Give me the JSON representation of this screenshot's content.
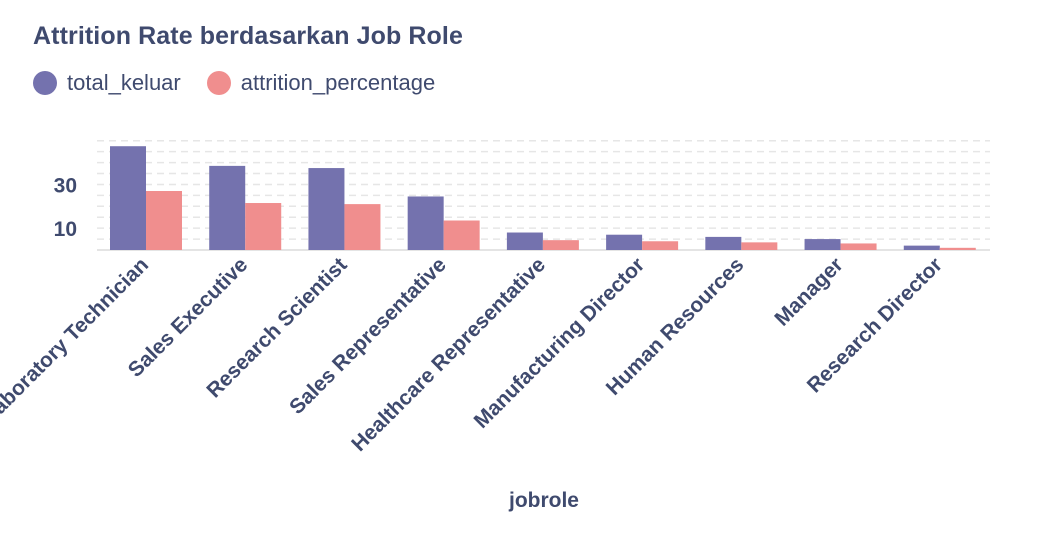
{
  "chart_data": {
    "type": "bar",
    "title": "Attrition Rate berdasarkan Job Role",
    "xlabel": "jobrole",
    "ylabel": "",
    "categories": [
      "Laboratory Technician",
      "Sales Executive",
      "Research Scientist",
      "Sales Representative",
      "Healthcare Representative",
      "Manufacturing Director",
      "Human Resources",
      "Manager",
      "Research Director"
    ],
    "series": [
      {
        "name": "total_keluar",
        "color": "#7472ae",
        "values": [
          47.5,
          38.5,
          37.5,
          24.5,
          8,
          7,
          6,
          5,
          2
        ]
      },
      {
        "name": "attrition_percentage",
        "color": "#f08e8e",
        "values": [
          27,
          21.5,
          21,
          13.5,
          4.5,
          4,
          3.5,
          3,
          1
        ]
      }
    ],
    "y_ticks": [
      10,
      30
    ],
    "ylim": [
      0,
      49
    ],
    "grid": true,
    "legend": "top-left"
  }
}
